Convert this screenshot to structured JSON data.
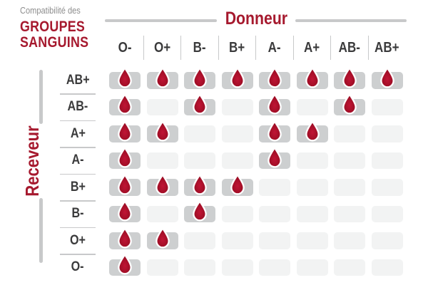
{
  "title": {
    "eyebrow": "Compatibilité des",
    "line1": "GROUPES",
    "line2": "SANGUINS"
  },
  "chart_data": {
    "type": "table",
    "title": "Compatibilité des groupes sanguins",
    "columns_label": "Donneur",
    "rows_label": "Receveur",
    "columns": [
      "O-",
      "O+",
      "B-",
      "B+",
      "A-",
      "A+",
      "AB-",
      "AB+"
    ],
    "rows": [
      "AB+",
      "AB-",
      "A+",
      "A-",
      "B+",
      "B-",
      "O+",
      "O-"
    ],
    "compatible": [
      [
        1,
        1,
        1,
        1,
        1,
        1,
        1,
        1
      ],
      [
        1,
        0,
        1,
        0,
        1,
        0,
        1,
        0
      ],
      [
        1,
        1,
        0,
        0,
        1,
        1,
        0,
        0
      ],
      [
        1,
        0,
        0,
        0,
        1,
        0,
        0,
        0
      ],
      [
        1,
        1,
        1,
        1,
        0,
        0,
        0,
        0
      ],
      [
        1,
        0,
        1,
        0,
        0,
        0,
        0,
        0
      ],
      [
        1,
        1,
        0,
        0,
        0,
        0,
        0,
        0
      ],
      [
        1,
        0,
        0,
        0,
        0,
        0,
        0,
        0
      ]
    ],
    "marker_icon": "blood-drop-icon"
  },
  "colors": {
    "accent_red": "#A6192E",
    "text_dark": "#3B3B3C",
    "muted_gray": "#8D8D8D",
    "line_gray": "#C8C9CA",
    "cell_filled": "#CDCFD0",
    "cell_empty": "#F2F3F3",
    "drop_gradient": [
      "#C01535",
      "#A50F28",
      "#8C0B1F"
    ]
  }
}
